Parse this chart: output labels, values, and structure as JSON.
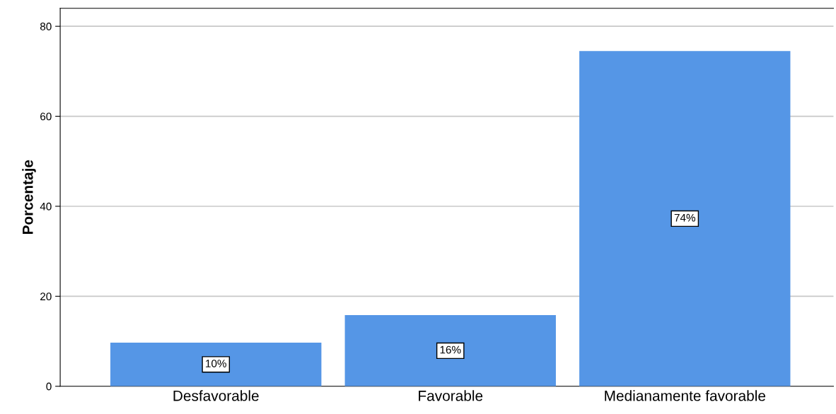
{
  "chart_data": {
    "type": "bar",
    "ylabel": "Porcentaje",
    "categories": [
      "Desfavorable",
      "Favorable",
      "Medianamente favorable"
    ],
    "values": [
      9.7,
      15.8,
      74.5
    ],
    "color": "#5596e6",
    "value_labels": [
      "10%",
      "16%",
      "74%"
    ],
    "ylim": [
      0,
      84
    ],
    "yticks": [
      0,
      20,
      40,
      60,
      80
    ],
    "grid": "y",
    "legend": false
  }
}
